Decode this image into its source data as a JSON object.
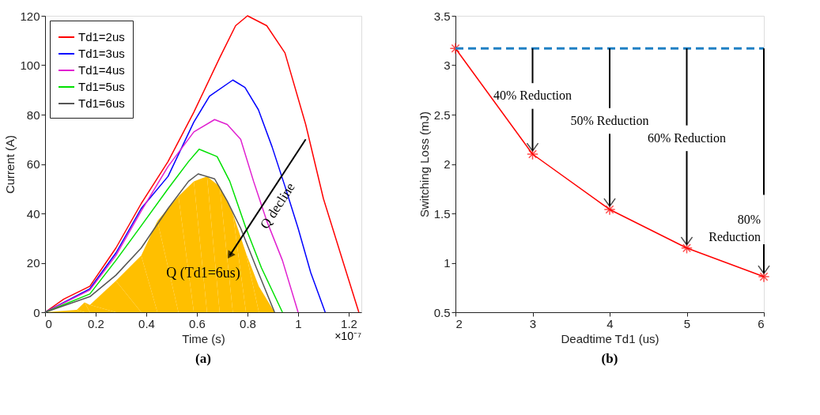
{
  "chart_data": [
    {
      "type": "line",
      "title": "(a)",
      "xlabel": "Time (s)",
      "ylabel": "Current (A)",
      "xlim": [
        0,
        1.25
      ],
      "xticks": [
        0,
        0.2,
        0.4,
        0.6,
        0.8,
        1,
        1.2
      ],
      "ylim": [
        0,
        120
      ],
      "yticks": [
        0,
        20,
        40,
        60,
        80,
        100,
        120
      ],
      "grid": false,
      "legend": "top left",
      "marker": "none",
      "line_style": "solid",
      "annotations": [
        "×10⁻⁷",
        {
          "text": "Q decline",
          "x": 0.73,
          "y": 23
        },
        "Q (Td1=6us)"
      ],
      "series": [
        {
          "type": "area",
          "color": "#ffbf00",
          "x": [
            0,
            0.125,
            0.156,
            0.177,
            0.28,
            0.38,
            0.444,
            0.527,
            0.588,
            0.64,
            0.69,
            0.742,
            0.794,
            0.845,
            0.907
          ],
          "values": [
            0,
            1,
            4,
            3,
            12.7,
            23,
            37,
            47,
            53,
            55,
            51,
            40,
            24,
            10.5,
            0
          ]
        },
        {
          "name": "Td1=2us",
          "color": "#ff0000",
          "x": [
            0,
            0.074,
            0.177,
            0.28,
            0.38,
            0.486,
            0.588,
            0.69,
            0.753,
            0.8,
            0.876,
            0.948,
            1.03,
            1.1,
            1.185,
            1.24
          ],
          "values": [
            0,
            5.3,
            10.5,
            26,
            44,
            61,
            81,
            103,
            116,
            120,
            116,
            105,
            76,
            46,
            18,
            0
          ]
        },
        {
          "name": "Td1=3us",
          "color": "#0000ff",
          "x": [
            0,
            0.177,
            0.28,
            0.38,
            0.486,
            0.588,
            0.65,
            0.742,
            0.79,
            0.843,
            0.897,
            0.948,
            1,
            1.05,
            1.107
          ],
          "values": [
            0,
            9.5,
            24,
            42,
            55,
            77,
            87.5,
            94,
            91,
            82,
            67,
            51,
            34,
            16,
            0
          ]
        },
        {
          "name": "Td1=4us",
          "color": "#e020d0",
          "x": [
            0,
            0.177,
            0.28,
            0.38,
            0.486,
            0.588,
            0.67,
            0.72,
            0.773,
            0.824,
            0.876,
            0.938,
            1
          ],
          "values": [
            0,
            9,
            23,
            41,
            59,
            73,
            78,
            76,
            70,
            53,
            37,
            21,
            0
          ]
        },
        {
          "name": "Td1=5us",
          "color": "#00e000",
          "x": [
            0,
            0.177,
            0.28,
            0.38,
            0.486,
            0.567,
            0.609,
            0.68,
            0.73,
            0.794,
            0.855,
            0.938
          ],
          "values": [
            0,
            7.4,
            21,
            35,
            50,
            61,
            66,
            63,
            53,
            34,
            18,
            0
          ]
        },
        {
          "name": "Td1=6us",
          "color": "#555555",
          "x": [
            0,
            0.177,
            0.28,
            0.38,
            0.486,
            0.567,
            0.605,
            0.67,
            0.72,
            0.773,
            0.835,
            0.907
          ],
          "values": [
            0,
            6.3,
            15,
            26,
            42,
            53,
            56,
            54,
            45,
            34,
            18,
            0
          ]
        }
      ]
    },
    {
      "type": "line",
      "title": "(b)",
      "xlabel": "Deadtime Td1 (us)",
      "ylabel": "Switching Loss (mJ)",
      "x": [
        2,
        3,
        4,
        5,
        6
      ],
      "xlim": [
        2,
        6
      ],
      "xticks": [
        2,
        3,
        4,
        5,
        6
      ],
      "ylim": [
        0.5,
        3.5
      ],
      "yticks": [
        0.5,
        1,
        1.5,
        2,
        2.5,
        3,
        3.5
      ],
      "grid": false,
      "legend": false,
      "marker": "cross",
      "line_style": "solid",
      "series": [
        {
          "color": "#ff0000",
          "values": [
            3.17,
            2.1,
            1.54,
            1.15,
            0.86
          ]
        }
      ],
      "ref_lines": [
        {
          "axis": "y",
          "value": 3.17,
          "color": "#1f80c4",
          "line_style": "dashed"
        }
      ],
      "annotations": [
        {
          "text": "40% Reduction",
          "x": 3,
          "y": 2.1
        },
        {
          "text": "50% Reduction",
          "x": 4,
          "y": 1.54
        },
        {
          "text": "60% Reduction",
          "x": 5,
          "y": 1.15
        },
        {
          "text": "80% Reduction",
          "x": 6,
          "y": 0.86
        }
      ]
    }
  ]
}
